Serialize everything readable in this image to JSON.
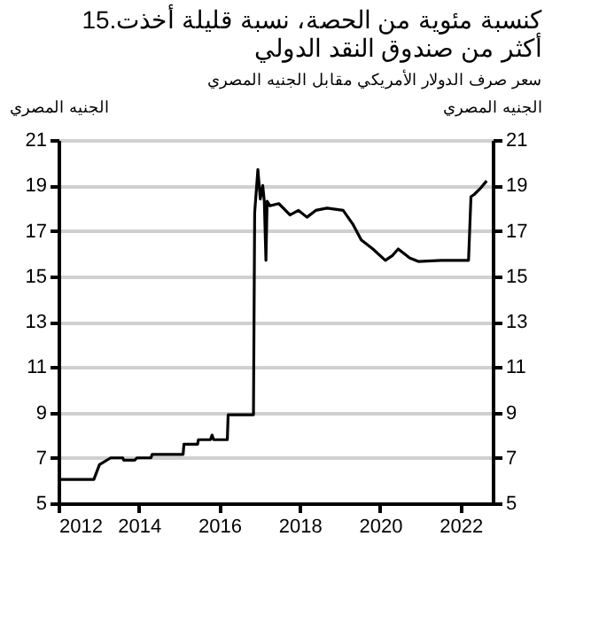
{
  "chart_data": {
    "type": "line",
    "title": "15.كنسبة مئوية من الحصة، نسبة قليلة أخذت\nأكثر من صندوق النقد الدولي",
    "subtitle": "سعر صرف الدولار الأمريكي مقابل الجنيه المصري",
    "ylabel": "الجنيه المصري",
    "y2label": "الجنيه المصري",
    "x": [
      2012.0,
      2012.88,
      2013.02,
      2013.3,
      2013.6,
      2013.62,
      2013.9,
      2013.95,
      2014.3,
      2014.33,
      2015.1,
      2015.12,
      2015.46,
      2015.48,
      2015.78,
      2015.82,
      2015.86,
      2016.2,
      2016.22,
      2016.85,
      2016.88,
      2016.96,
      2017.02,
      2017.08,
      2017.12,
      2017.16,
      2017.19,
      2017.26,
      2017.48,
      2017.76,
      2017.97,
      2018.18,
      2018.4,
      2018.68,
      2019.08,
      2019.32,
      2019.53,
      2019.82,
      2020.13,
      2020.3,
      2020.45,
      2020.74,
      2020.95,
      2021.52,
      2022.2,
      2022.26,
      2022.34,
      2022.51,
      2022.65
    ],
    "series": [
      {
        "color": "#000000",
        "values": [
          6.05,
          6.05,
          6.7,
          7.0,
          7.0,
          6.9,
          6.9,
          7.0,
          7.0,
          7.15,
          7.15,
          7.6,
          7.6,
          7.8,
          7.8,
          8.0,
          7.8,
          7.8,
          8.9,
          8.9,
          17.8,
          19.7,
          18.4,
          19.0,
          18.3,
          15.7,
          18.3,
          18.1,
          18.2,
          17.7,
          17.9,
          17.6,
          17.9,
          18.0,
          17.9,
          17.3,
          16.6,
          16.2,
          15.7,
          15.9,
          16.2,
          15.8,
          15.65,
          15.7,
          15.7,
          18.5,
          18.6,
          18.9,
          19.2
        ]
      }
    ],
    "xlim": [
      2012,
      2022.8
    ],
    "xticks": [
      2012,
      2014,
      2016,
      2018,
      2020,
      2022
    ],
    "ylim": [
      5,
      21
    ],
    "yticks": [
      5,
      7,
      9,
      11,
      13,
      15,
      17,
      19,
      21
    ],
    "y2lim": [
      5,
      21
    ],
    "y2ticks": [
      5,
      7,
      9,
      11,
      13,
      15,
      17,
      19,
      21
    ],
    "grid": "y"
  }
}
